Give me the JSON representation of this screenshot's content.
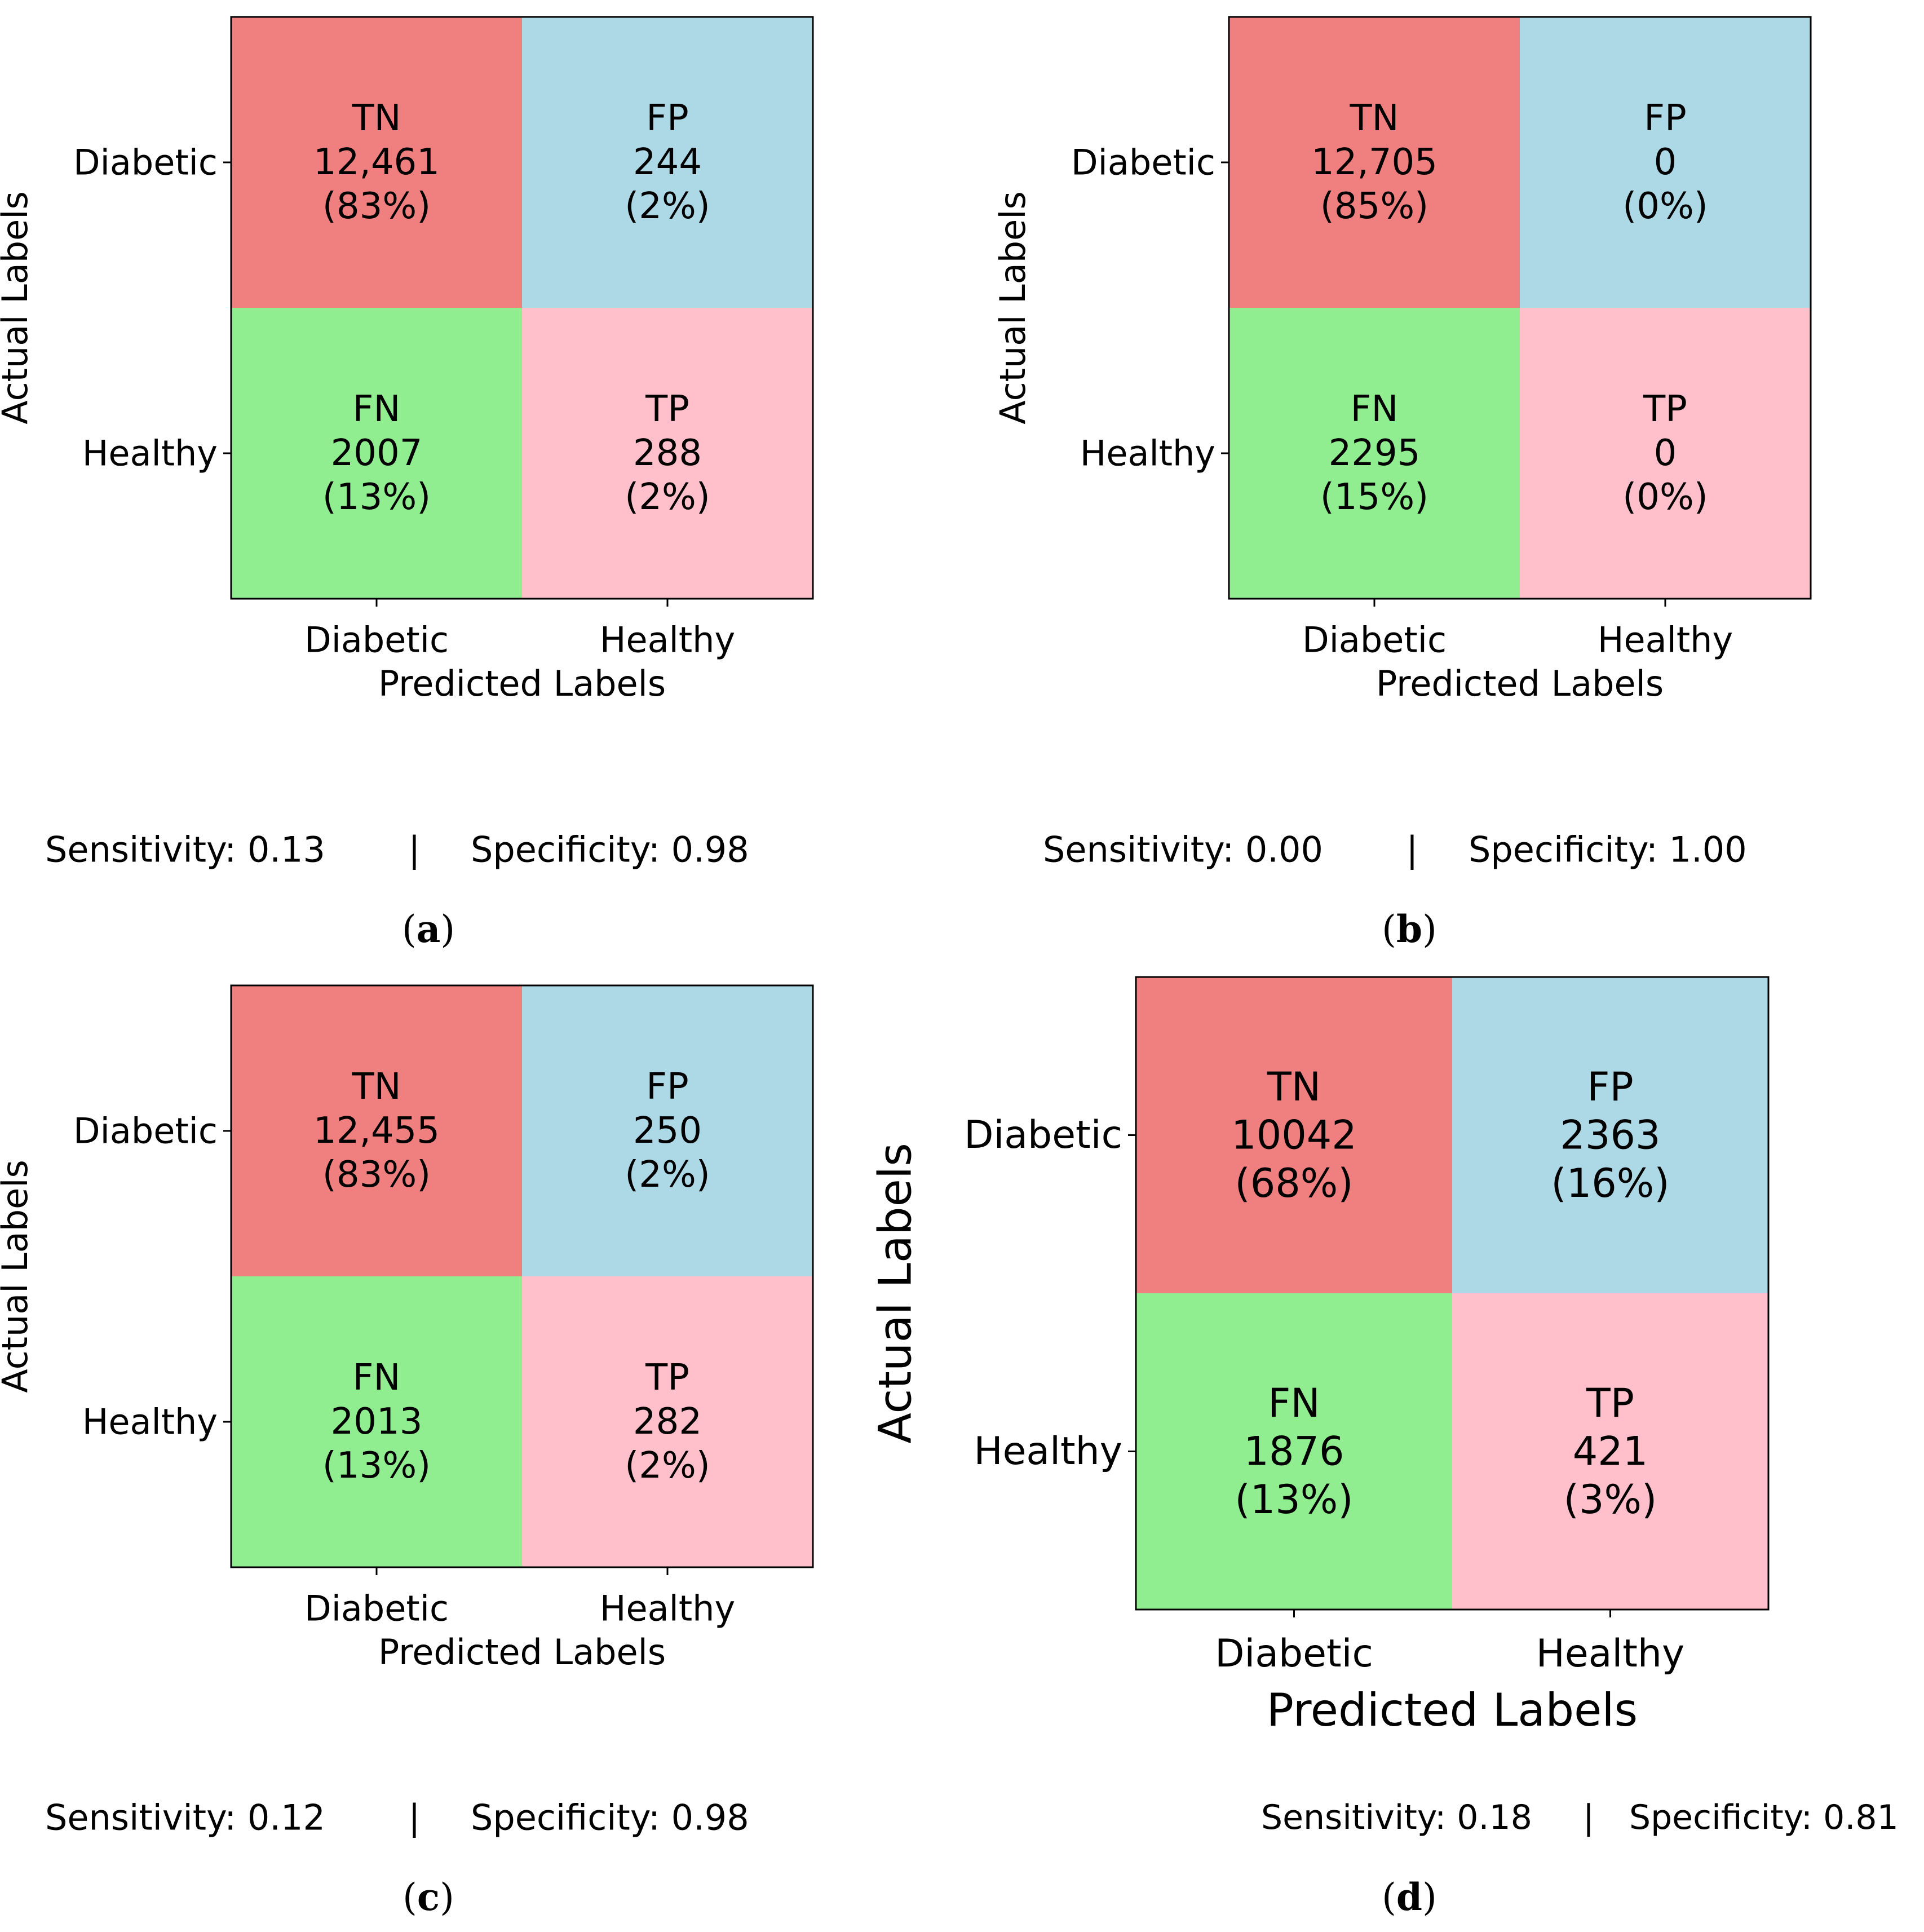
{
  "chart_data": [
    {
      "type": "heatmap",
      "panel": "(a)",
      "xlabel": "Predicted Labels",
      "ylabel": "Actual Labels",
      "x_tick_labels": [
        "Diabetic",
        "Healthy"
      ],
      "y_tick_labels": [
        "Diabetic",
        "Healthy"
      ],
      "cells": [
        {
          "label": "TN",
          "count": "12,461",
          "percent": "(83%)",
          "actual": "Diabetic",
          "predicted": "Diabetic",
          "value": 12461,
          "color": "#f08080"
        },
        {
          "label": "FP",
          "count": "244",
          "percent": "(2%)",
          "actual": "Diabetic",
          "predicted": "Healthy",
          "value": 244,
          "color": "#add8e6"
        },
        {
          "label": "FN",
          "count": "2007",
          "percent": "(13%)",
          "actual": "Healthy",
          "predicted": "Diabetic",
          "value": 2007,
          "color": "#90ee90"
        },
        {
          "label": "TP",
          "count": "288",
          "percent": "(2%)",
          "actual": "Healthy",
          "predicted": "Healthy",
          "value": 288,
          "color": "#ffc0cb"
        }
      ],
      "metrics": {
        "sensitivity": "Sensitivity: 0.13",
        "separator": "|",
        "specificity": "Specificity: 0.98"
      }
    },
    {
      "type": "heatmap",
      "panel": "(b)",
      "xlabel": "Predicted Labels",
      "ylabel": "Actual Labels",
      "x_tick_labels": [
        "Diabetic",
        "Healthy"
      ],
      "y_tick_labels": [
        "Diabetic",
        "Healthy"
      ],
      "cells": [
        {
          "label": "TN",
          "count": "12,705",
          "percent": "(85%)",
          "actual": "Diabetic",
          "predicted": "Diabetic",
          "value": 12705,
          "color": "#f08080"
        },
        {
          "label": "FP",
          "count": "0",
          "percent": "(0%)",
          "actual": "Diabetic",
          "predicted": "Healthy",
          "value": 0,
          "color": "#add8e6"
        },
        {
          "label": "FN",
          "count": "2295",
          "percent": "(15%)",
          "actual": "Healthy",
          "predicted": "Diabetic",
          "value": 2295,
          "color": "#90ee90"
        },
        {
          "label": "TP",
          "count": "0",
          "percent": "(0%)",
          "actual": "Healthy",
          "predicted": "Healthy",
          "value": 0,
          "color": "#ffc0cb"
        }
      ],
      "metrics": {
        "sensitivity": "Sensitivity: 0.00",
        "separator": "|",
        "specificity": "Specificity: 1.00"
      }
    },
    {
      "type": "heatmap",
      "panel": "(c)",
      "xlabel": "Predicted Labels",
      "ylabel": "Actual Labels",
      "x_tick_labels": [
        "Diabetic",
        "Healthy"
      ],
      "y_tick_labels": [
        "Diabetic",
        "Healthy"
      ],
      "cells": [
        {
          "label": "TN",
          "count": "12,455",
          "percent": "(83%)",
          "actual": "Diabetic",
          "predicted": "Diabetic",
          "value": 12455,
          "color": "#f08080"
        },
        {
          "label": "FP",
          "count": "250",
          "percent": "(2%)",
          "actual": "Diabetic",
          "predicted": "Healthy",
          "value": 250,
          "color": "#add8e6"
        },
        {
          "label": "FN",
          "count": "2013",
          "percent": "(13%)",
          "actual": "Healthy",
          "predicted": "Diabetic",
          "value": 2013,
          "color": "#90ee90"
        },
        {
          "label": "TP",
          "count": "282",
          "percent": "(2%)",
          "actual": "Healthy",
          "predicted": "Healthy",
          "value": 282,
          "color": "#ffc0cb"
        }
      ],
      "metrics": {
        "sensitivity": "Sensitivity: 0.12",
        "separator": "|",
        "specificity": "Specificity: 0.98"
      }
    },
    {
      "type": "heatmap",
      "panel": "(d)",
      "xlabel": "Predicted Labels",
      "ylabel": "Actual Labels",
      "x_tick_labels": [
        "Diabetic",
        "Healthy"
      ],
      "y_tick_labels": [
        "Diabetic",
        "Healthy"
      ],
      "cells": [
        {
          "label": "TN",
          "count": "10042",
          "percent": "(68%)",
          "actual": "Diabetic",
          "predicted": "Diabetic",
          "value": 10042,
          "color": "#f08080"
        },
        {
          "label": "FP",
          "count": "2363",
          "percent": "(16%)",
          "actual": "Diabetic",
          "predicted": "Healthy",
          "value": 2363,
          "color": "#add8e6"
        },
        {
          "label": "FN",
          "count": "1876",
          "percent": "(13%)",
          "actual": "Healthy",
          "predicted": "Diabetic",
          "value": 1876,
          "color": "#90ee90"
        },
        {
          "label": "TP",
          "count": "421",
          "percent": "(3%)",
          "actual": "Healthy",
          "predicted": "Healthy",
          "value": 421,
          "color": "#ffc0cb"
        }
      ],
      "metrics": {
        "sensitivity": "Sensitivity: 0.18",
        "separator": "|",
        "specificity": "Specificity: 0.81"
      }
    }
  ]
}
